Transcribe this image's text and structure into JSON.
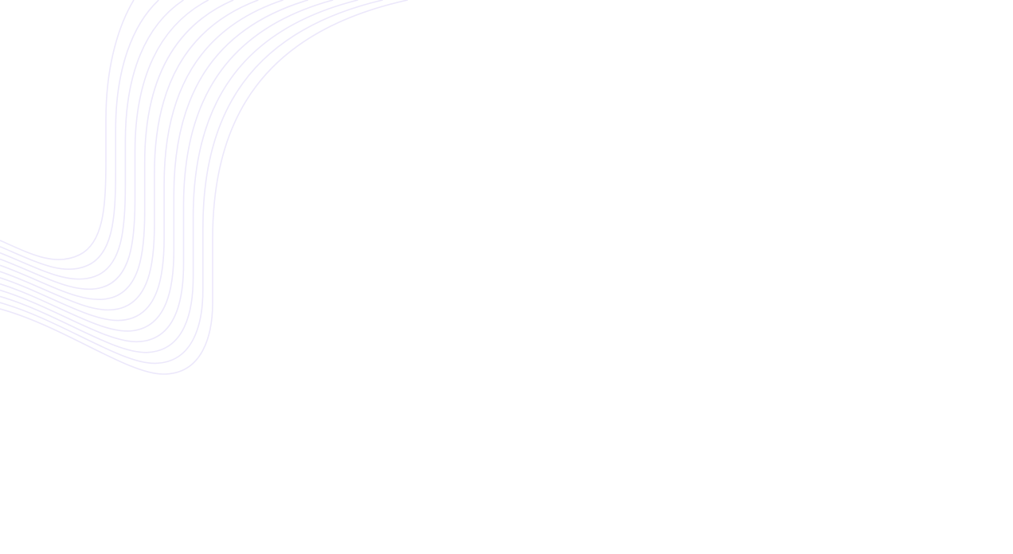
{
  "background": {
    "pattern": "wavy-lines",
    "line_color": "#ece8fb",
    "page_color": "#ffffff"
  }
}
